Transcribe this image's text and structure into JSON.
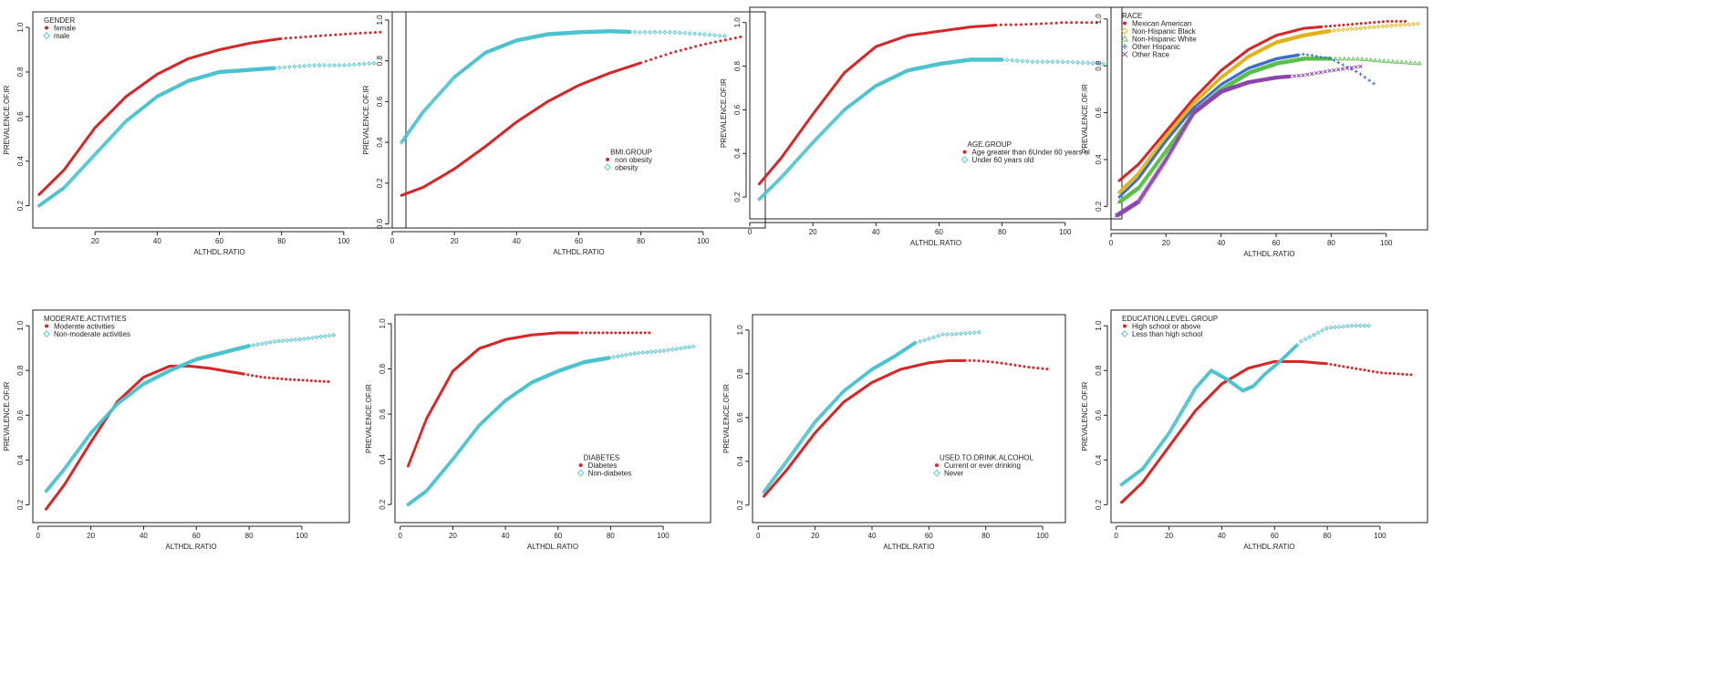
{
  "colors": {
    "red": "#d62728",
    "cyan": "#4cc3cf",
    "gold": "#e0b31a",
    "green": "#59c04a",
    "blue": "#3b6fc7",
    "purple": "#8e44ad"
  },
  "chart_data": [
    {
      "type": "scatter",
      "xlabel": "ALTHDL.RATIO",
      "ylabel": "PREVALENCE.OF.IR",
      "xlim": [
        0,
        120
      ],
      "ylim": [
        0.1,
        1.07
      ],
      "xticks": [
        20,
        40,
        60,
        80,
        100
      ],
      "yticks": [
        0.2,
        0.4,
        0.6,
        0.8,
        1.0
      ],
      "ytick_labels": [
        "0.2",
        "0.4",
        "0.6",
        "0.8",
        "1.0"
      ],
      "legend": {
        "title": "GENDER",
        "position": "top-left"
      },
      "series": [
        {
          "name": "female",
          "color": "#d62728",
          "marker": "dot",
          "x": [
            2,
            10,
            20,
            30,
            40,
            50,
            60,
            70,
            80,
            90,
            100,
            113
          ],
          "y": [
            0.25,
            0.36,
            0.55,
            0.69,
            0.79,
            0.86,
            0.9,
            0.93,
            0.95,
            0.96,
            0.97,
            0.98
          ]
        },
        {
          "name": "male",
          "color": "#4cc3cf",
          "marker": "diamond",
          "x": [
            2,
            10,
            20,
            30,
            40,
            50,
            60,
            70,
            80,
            90,
            100,
            110
          ],
          "y": [
            0.2,
            0.28,
            0.43,
            0.58,
            0.69,
            0.76,
            0.8,
            0.81,
            0.82,
            0.83,
            0.83,
            0.84
          ]
        }
      ]
    },
    {
      "type": "scatter",
      "xlabel": "ALTHDL.RATIO",
      "ylabel": "PREVALENCE.OF.IR",
      "xlim": [
        0,
        120
      ],
      "ylim": [
        -0.02,
        1.04
      ],
      "xticks": [
        0,
        20,
        40,
        60,
        80,
        100
      ],
      "yticks": [
        0.0,
        0.2,
        0.4,
        0.6,
        0.8,
        1.0
      ],
      "ytick_labels": [
        "0.0",
        "0.2",
        "0.4",
        "0.6",
        "0.8",
        "1.0"
      ],
      "legend": {
        "title": "BMI.GROUP",
        "position": "center-right"
      },
      "series": [
        {
          "name": "non obesity",
          "color": "#d62728",
          "marker": "dot",
          "x": [
            3,
            10,
            20,
            30,
            40,
            50,
            60,
            70,
            80,
            90,
            100,
            113
          ],
          "y": [
            0.14,
            0.18,
            0.27,
            0.38,
            0.5,
            0.6,
            0.68,
            0.74,
            0.79,
            0.84,
            0.88,
            0.92
          ]
        },
        {
          "name": "obesity",
          "color": "#4cc3cf",
          "marker": "diamond",
          "x": [
            3,
            10,
            20,
            30,
            40,
            50,
            60,
            70,
            80,
            90,
            100,
            108
          ],
          "y": [
            0.4,
            0.55,
            0.72,
            0.84,
            0.9,
            0.93,
            0.94,
            0.945,
            0.94,
            0.94,
            0.93,
            0.92
          ]
        }
      ]
    },
    {
      "type": "scatter",
      "xlabel": "ALTHDL.RATIO",
      "ylabel": "PREVALENCE.OF.IR",
      "xlim": [
        0,
        118
      ],
      "ylim": [
        0.1,
        1.07
      ],
      "xticks": [
        0,
        20,
        40,
        60,
        80,
        100
      ],
      "yticks": [
        0.2,
        0.4,
        0.6,
        0.8,
        1.0
      ],
      "ytick_labels": [
        "0.2",
        "0.4",
        "0.6",
        "0.8",
        "1.0"
      ],
      "legend": {
        "title": "AGE.GROUP",
        "position": "center-right"
      },
      "series": [
        {
          "name": "Age greater than 6Under 60 years ol",
          "color": "#d62728",
          "marker": "dot",
          "x": [
            3,
            10,
            20,
            30,
            40,
            50,
            60,
            70,
            80,
            85,
            100,
            110
          ],
          "y": [
            0.26,
            0.38,
            0.58,
            0.77,
            0.89,
            0.94,
            0.96,
            0.98,
            0.99,
            0.99,
            1.0,
            1.0
          ]
        },
        {
          "name": "Under 60 years old",
          "color": "#4cc3cf",
          "marker": "diamond",
          "x": [
            3,
            10,
            20,
            30,
            40,
            50,
            60,
            70,
            80,
            90,
            100,
            113
          ],
          "y": [
            0.19,
            0.29,
            0.45,
            0.6,
            0.71,
            0.78,
            0.81,
            0.83,
            0.83,
            0.82,
            0.82,
            0.81
          ]
        }
      ]
    },
    {
      "type": "scatter",
      "xlabel": "ALTHDL.RATIO",
      "ylabel": "PREVALENCE.OF.IR",
      "xlim": [
        0,
        115
      ],
      "ylim": [
        0.1,
        1.05
      ],
      "xticks": [
        0,
        20,
        40,
        60,
        80,
        100
      ],
      "yticks": [
        0.2,
        0.4,
        0.6,
        0.8,
        1.0
      ],
      "ytick_labels": [
        "0.2",
        "0.4",
        "0.6",
        "0.8",
        "1.0"
      ],
      "legend": {
        "title": "RACE",
        "position": "top-left"
      },
      "series": [
        {
          "name": "Mexican American",
          "color": "#d62728",
          "marker": "dot",
          "x": [
            3,
            10,
            20,
            30,
            40,
            50,
            60,
            70,
            80,
            90,
            100,
            108
          ],
          "y": [
            0.31,
            0.38,
            0.52,
            0.66,
            0.78,
            0.87,
            0.93,
            0.96,
            0.97,
            0.98,
            0.99,
            0.99
          ]
        },
        {
          "name": "Non-Hispanic Black",
          "color": "#e0b31a",
          "marker": "diamond",
          "x": [
            3,
            10,
            20,
            30,
            40,
            50,
            60,
            70,
            80,
            90,
            100,
            112
          ],
          "y": [
            0.26,
            0.34,
            0.5,
            0.64,
            0.75,
            0.84,
            0.9,
            0.93,
            0.95,
            0.96,
            0.97,
            0.98
          ]
        },
        {
          "name": "Non-Hispanic White",
          "color": "#59c04a",
          "marker": "triangle",
          "x": [
            3,
            10,
            20,
            30,
            40,
            50,
            60,
            70,
            80,
            90,
            100,
            113
          ],
          "y": [
            0.22,
            0.28,
            0.44,
            0.6,
            0.7,
            0.77,
            0.81,
            0.83,
            0.83,
            0.83,
            0.82,
            0.81
          ]
        },
        {
          "name": "Other Hispanic",
          "color": "#3b6fc7",
          "marker": "plus",
          "x": [
            3,
            10,
            20,
            30,
            40,
            50,
            60,
            70,
            80,
            90,
            96
          ],
          "y": [
            0.24,
            0.32,
            0.48,
            0.62,
            0.72,
            0.79,
            0.83,
            0.85,
            0.83,
            0.77,
            0.72
          ]
        },
        {
          "name": "Other Race",
          "color": "#8e44ad",
          "marker": "cross",
          "x": [
            2,
            10,
            20,
            30,
            40,
            50,
            60,
            70,
            80,
            92
          ],
          "y": [
            0.16,
            0.22,
            0.4,
            0.6,
            0.69,
            0.73,
            0.75,
            0.76,
            0.78,
            0.8
          ]
        }
      ]
    },
    {
      "type": "scatter",
      "xlabel": "ALTHDL.RATIO",
      "ylabel": "PREVALENCE.OF.IR",
      "xlim": [
        -2,
        118
      ],
      "ylim": [
        0.12,
        1.07
      ],
      "xticks": [
        0,
        20,
        40,
        60,
        80,
        100
      ],
      "yticks": [
        0.2,
        0.4,
        0.6,
        0.8,
        1.0
      ],
      "ytick_labels": [
        "0.2",
        "0.4",
        "0.6",
        "0.8",
        "1.0"
      ],
      "legend": {
        "title": "MODERATE.ACTIVITIES",
        "position": "top-left"
      },
      "series": [
        {
          "name": "Moderate activities",
          "color": "#d62728",
          "marker": "dot",
          "x": [
            3,
            10,
            20,
            30,
            40,
            50,
            57,
            65,
            75,
            85,
            95,
            110
          ],
          "y": [
            0.18,
            0.29,
            0.48,
            0.66,
            0.77,
            0.82,
            0.82,
            0.81,
            0.79,
            0.77,
            0.76,
            0.75
          ]
        },
        {
          "name": "Non-moderate activities",
          "color": "#4cc3cf",
          "marker": "diamond",
          "x": [
            3,
            10,
            20,
            30,
            40,
            50,
            60,
            70,
            80,
            90,
            100,
            113
          ],
          "y": [
            0.26,
            0.36,
            0.52,
            0.65,
            0.74,
            0.8,
            0.85,
            0.88,
            0.91,
            0.93,
            0.94,
            0.96
          ]
        }
      ]
    },
    {
      "type": "scatter",
      "xlabel": "ALTHDL.RATIO",
      "ylabel": "PREVALENCE.OF.IR",
      "xlim": [
        -2,
        118
      ],
      "ylim": [
        0.12,
        1.04
      ],
      "xticks": [
        0,
        20,
        40,
        60,
        80,
        100
      ],
      "yticks": [
        0.2,
        0.4,
        0.6,
        0.8,
        1.0
      ],
      "ytick_labels": [
        "0.2",
        "0.4",
        "0.6",
        "0.8",
        "1.0"
      ],
      "legend": {
        "title": "DIABETES",
        "position": "bottom-right"
      },
      "series": [
        {
          "name": "Diabetes",
          "color": "#d62728",
          "marker": "dot",
          "x": [
            3,
            10,
            20,
            30,
            40,
            50,
            60,
            70,
            80,
            95
          ],
          "y": [
            0.37,
            0.58,
            0.79,
            0.89,
            0.93,
            0.95,
            0.96,
            0.96,
            0.96,
            0.96
          ]
        },
        {
          "name": "Non-diabetes",
          "color": "#4cc3cf",
          "marker": "diamond",
          "x": [
            3,
            10,
            20,
            30,
            40,
            50,
            60,
            70,
            80,
            90,
            100,
            112
          ],
          "y": [
            0.2,
            0.26,
            0.4,
            0.55,
            0.66,
            0.74,
            0.79,
            0.83,
            0.85,
            0.87,
            0.88,
            0.9
          ]
        }
      ]
    },
    {
      "type": "scatter",
      "xlabel": "ALTHDL.RATIO",
      "ylabel": "PREVALENCE.OF.IR",
      "xlim": [
        -2,
        108
      ],
      "ylim": [
        0.12,
        1.07
      ],
      "xticks": [
        0,
        20,
        40,
        60,
        80,
        100
      ],
      "yticks": [
        0.2,
        0.4,
        0.6,
        0.8,
        1.0
      ],
      "ytick_labels": [
        "0.2",
        "0.4",
        "0.6",
        "0.8",
        "1.0"
      ],
      "legend": {
        "title": "USED.TO.DRINK.ALCOHOL",
        "position": "bottom-right"
      },
      "series": [
        {
          "name": "Current or ever drinking",
          "color": "#d62728",
          "marker": "dot",
          "x": [
            2,
            10,
            20,
            30,
            40,
            50,
            60,
            67,
            77,
            85,
            95,
            103
          ],
          "y": [
            0.24,
            0.36,
            0.53,
            0.67,
            0.76,
            0.82,
            0.85,
            0.86,
            0.86,
            0.85,
            0.83,
            0.82
          ]
        },
        {
          "name": "Never",
          "color": "#4cc3cf",
          "marker": "diamond",
          "x": [
            2,
            10,
            20,
            30,
            40,
            48,
            55,
            65,
            68,
            78
          ],
          "y": [
            0.26,
            0.4,
            0.58,
            0.72,
            0.82,
            0.88,
            0.94,
            0.98,
            0.98,
            0.99
          ]
        }
      ]
    },
    {
      "type": "scatter",
      "xlabel": "ALTHDL.RATIO",
      "ylabel": "PREVALENCE.OF.IR",
      "xlim": [
        -2,
        118
      ],
      "ylim": [
        0.12,
        1.07
      ],
      "xticks": [
        0,
        20,
        40,
        60,
        80,
        100
      ],
      "yticks": [
        0.2,
        0.4,
        0.6,
        0.8,
        1.0
      ],
      "ytick_labels": [
        "0.2",
        "0.4",
        "0.6",
        "0.8",
        "1.0"
      ],
      "legend": {
        "title": "EDUCATION.LEVEL.GROUP",
        "position": "top-left"
      },
      "series": [
        {
          "name": "High school or above",
          "color": "#d62728",
          "marker": "dot",
          "x": [
            2,
            10,
            20,
            30,
            40,
            50,
            60,
            70,
            80,
            90,
            100,
            113
          ],
          "y": [
            0.21,
            0.3,
            0.46,
            0.62,
            0.74,
            0.81,
            0.84,
            0.84,
            0.83,
            0.81,
            0.79,
            0.78
          ]
        },
        {
          "name": "Less than high school",
          "color": "#4cc3cf",
          "marker": "diamond",
          "x": [
            2,
            10,
            20,
            30,
            36,
            42,
            48,
            52,
            56,
            62,
            70,
            80,
            90,
            97
          ],
          "y": [
            0.29,
            0.36,
            0.52,
            0.72,
            0.8,
            0.76,
            0.71,
            0.73,
            0.78,
            0.84,
            0.93,
            0.99,
            1.0,
            1.0
          ]
        }
      ]
    }
  ]
}
